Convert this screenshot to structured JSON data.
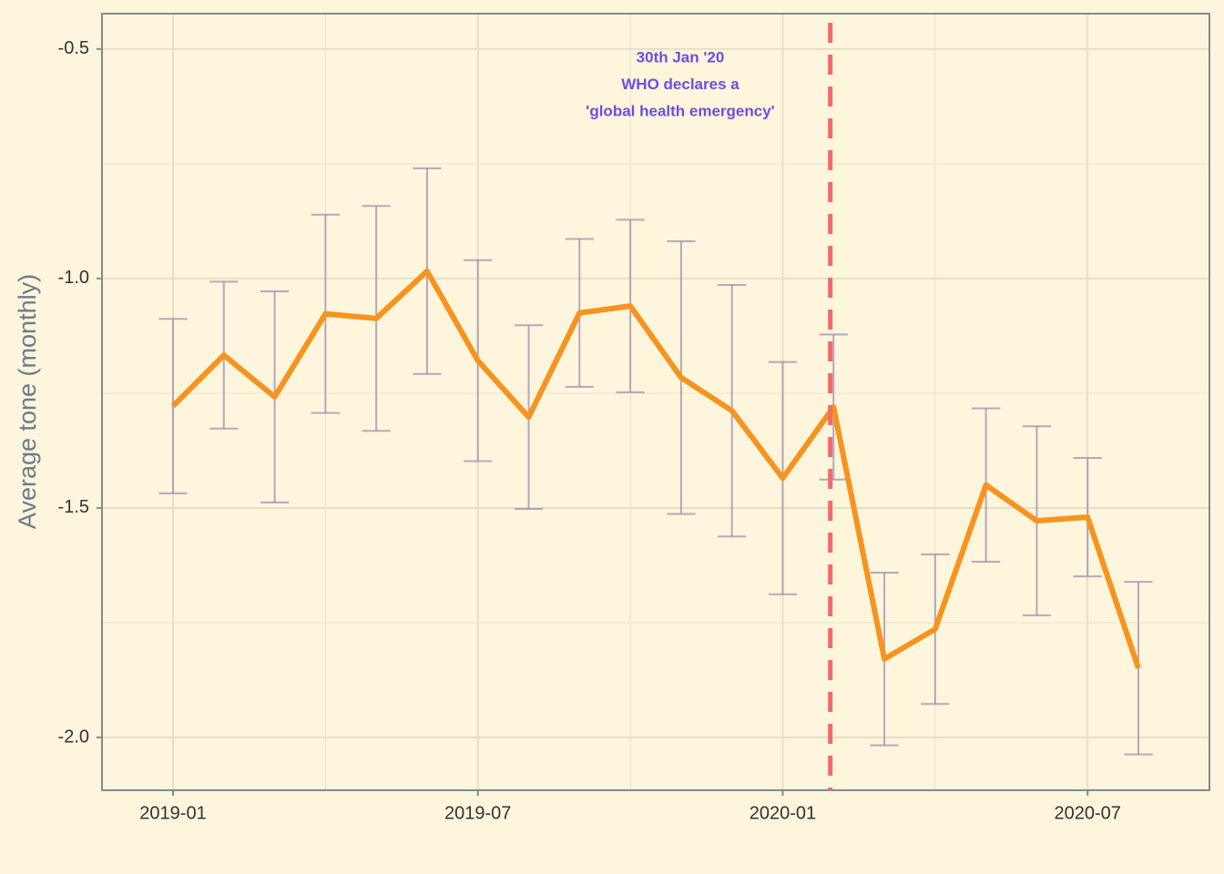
{
  "chart_data": {
    "type": "line",
    "y_label": "Average tone (monthly)",
    "x": [
      "2019-01",
      "2019-02",
      "2019-03",
      "2019-04",
      "2019-05",
      "2019-06",
      "2019-07",
      "2019-08",
      "2019-09",
      "2019-10",
      "2019-11",
      "2019-12",
      "2020-01",
      "2020-02",
      "2020-03",
      "2020-04",
      "2020-05",
      "2020-06",
      "2020-07",
      "2020-08"
    ],
    "series": [
      {
        "color": "#f7931e",
        "values": [
          -1.278,
          -1.167,
          -1.258,
          -1.077,
          -1.087,
          -0.984,
          -1.179,
          -1.302,
          -1.075,
          -1.06,
          -1.216,
          -1.288,
          -1.435,
          -1.28,
          -1.829,
          -1.764,
          -1.45,
          -1.528,
          -1.52,
          -1.849
        ],
        "errors": [
          0.19,
          0.16,
          0.23,
          0.216,
          0.245,
          0.224,
          0.219,
          0.2,
          0.161,
          0.188,
          0.297,
          0.274,
          0.253,
          0.158,
          0.188,
          0.163,
          0.167,
          0.206,
          0.129,
          0.188
        ],
        "error_color": "#9a8fb0"
      }
    ],
    "ylim": [
      -2.115,
      -0.423
    ],
    "yticks": [
      {
        "value": -0.5,
        "label": "-0.5"
      },
      {
        "value": -1.0,
        "label": "-1.0"
      },
      -1.5,
      {
        "value": -2.0,
        "label": "-2.0"
      }
    ],
    "xticks": [
      "2019-01",
      "2019-07",
      "2020-01",
      "2020-07"
    ],
    "grid": true,
    "vline": {
      "x": "2020-01-30",
      "color": "#f26b6b",
      "label": [
        "30th Jan '20",
        "WHO declares a",
        "'global health emergency'"
      ],
      "label_color": "#6a4fe0"
    }
  }
}
